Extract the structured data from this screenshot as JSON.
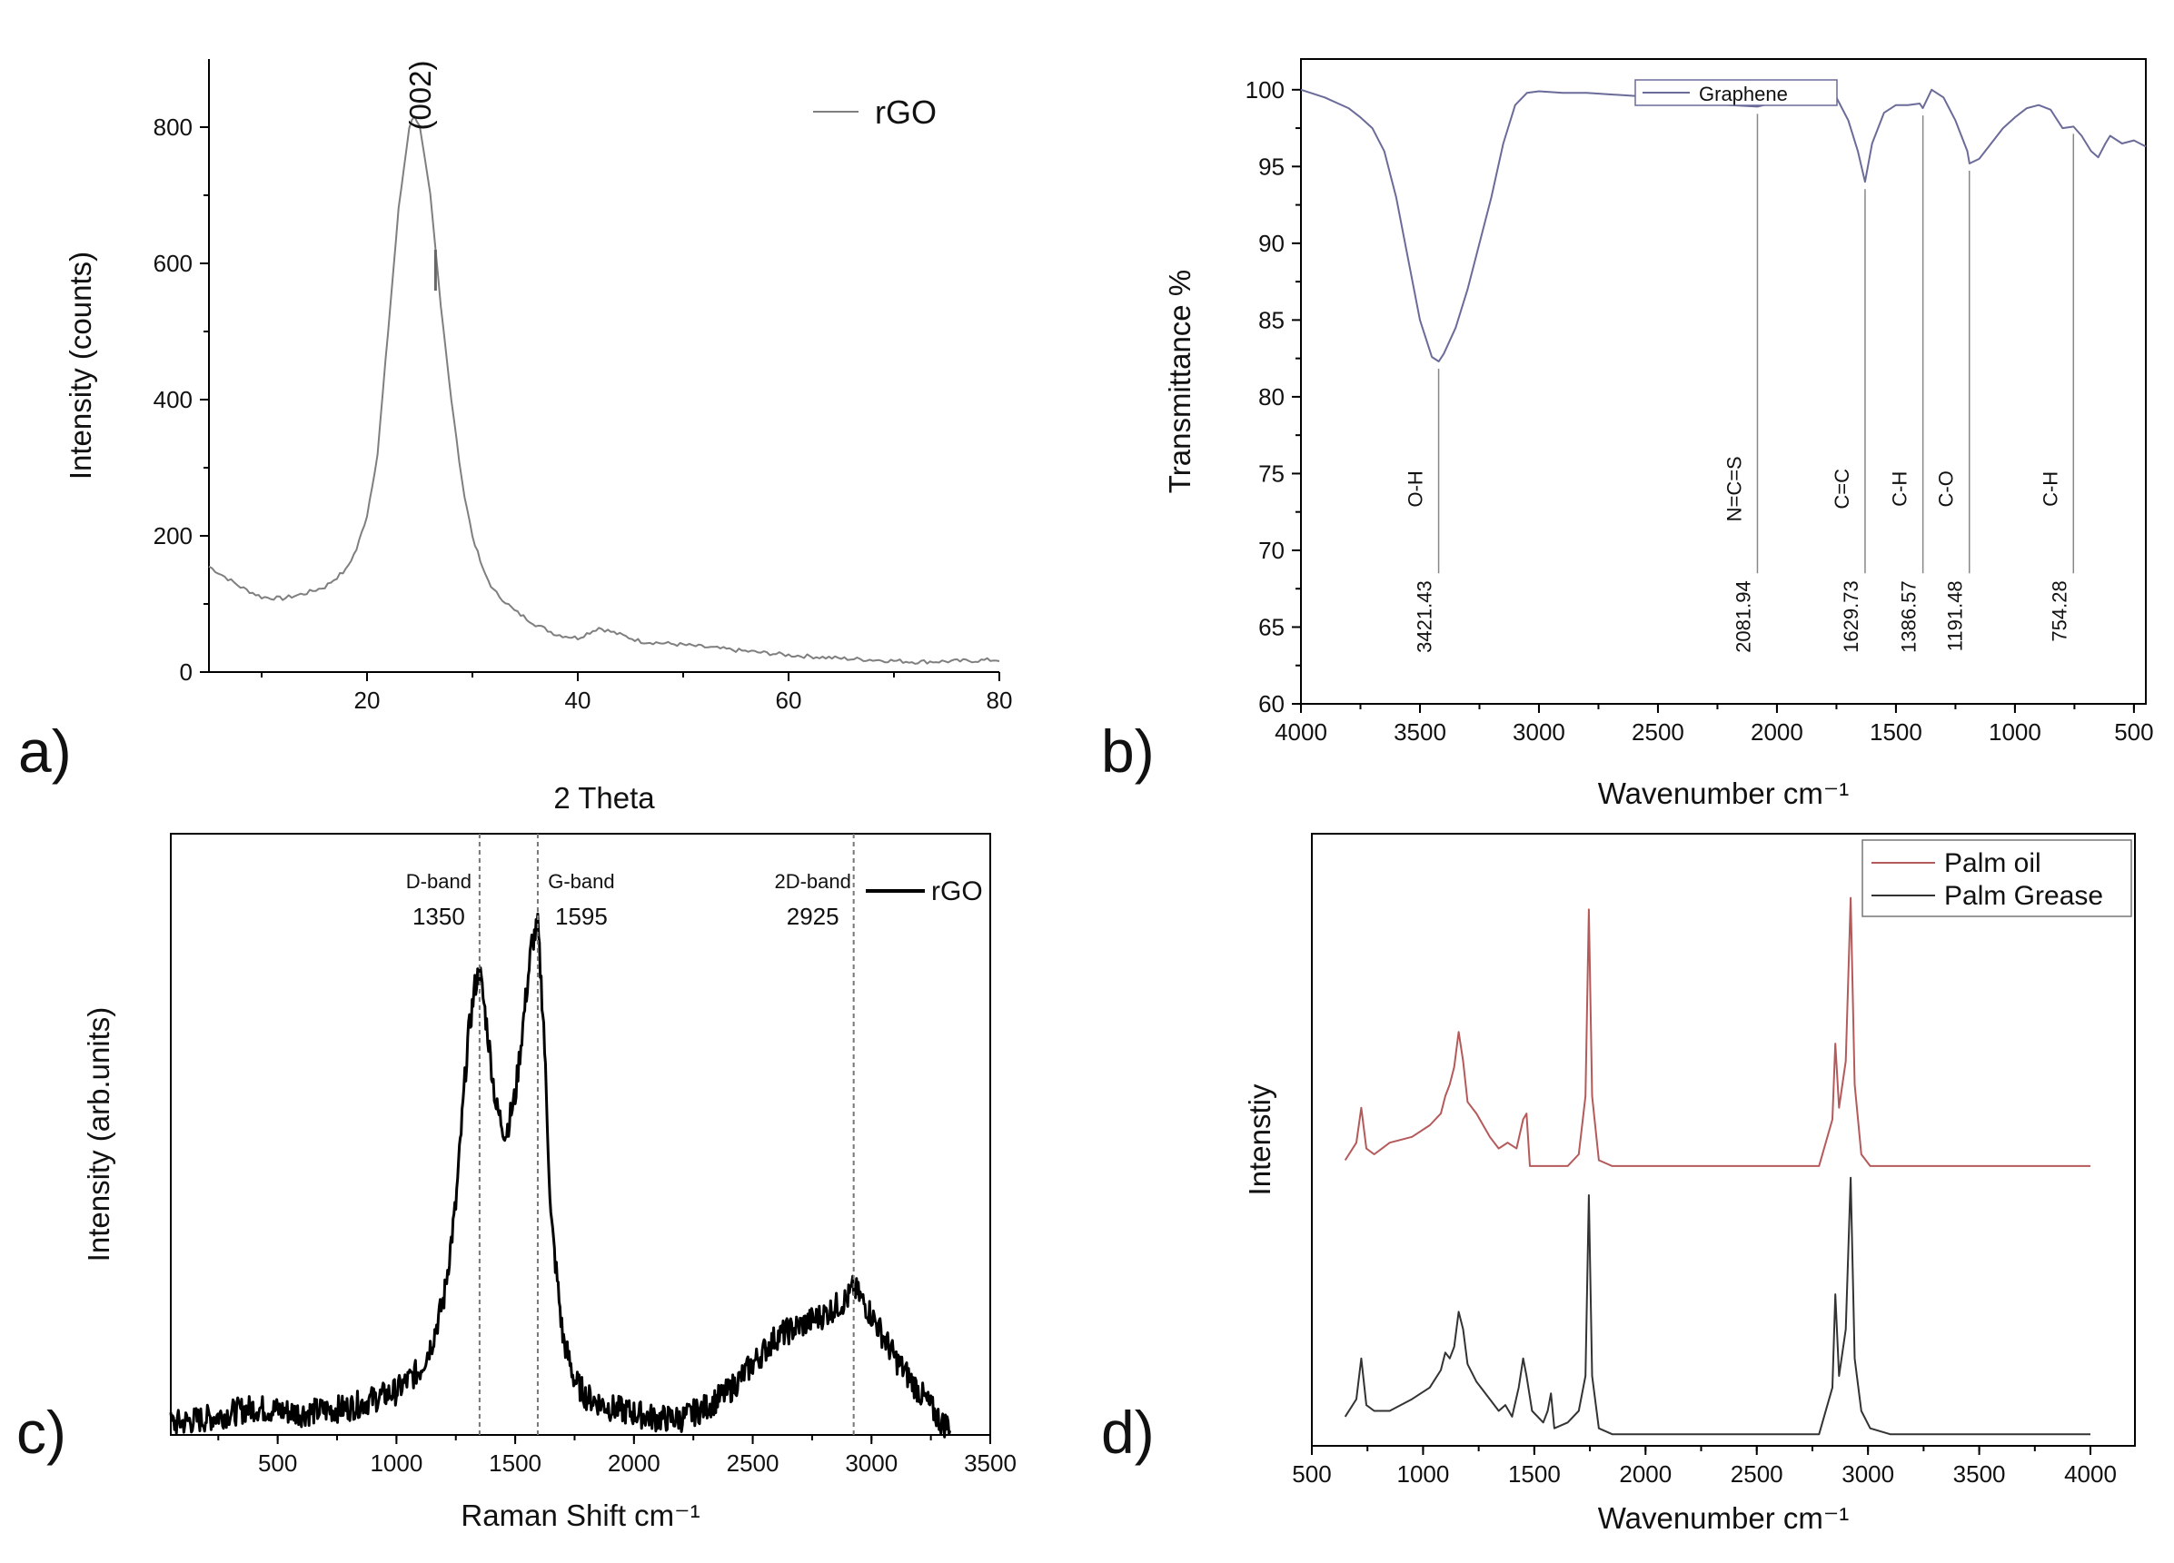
{
  "chart_data": [
    {
      "type": "line",
      "panel_label": "a)",
      "title": "",
      "xlabel": "2 Theta",
      "ylabel": "Intensity (counts)",
      "xlim": [
        5,
        80
      ],
      "ylim": [
        0,
        900
      ],
      "x_ticks": [
        "20",
        "40",
        "60",
        "80"
      ],
      "y_ticks": [
        "0",
        "200",
        "400",
        "600",
        "800"
      ],
      "legend": [
        "rGO"
      ],
      "annotations": [
        "(002)"
      ],
      "series": [
        {
          "name": "rGO",
          "color": "#7f7f7f",
          "x": [
            5,
            8,
            10,
            12,
            14,
            16,
            18,
            19,
            20,
            21,
            22,
            23,
            24,
            24.5,
            25,
            26,
            26.5,
            27,
            28,
            29,
            30,
            31,
            32,
            34,
            36,
            38,
            40,
            42,
            44,
            46,
            50,
            55,
            60,
            65,
            68,
            72,
            76,
            80
          ],
          "y": [
            155,
            125,
            110,
            108,
            115,
            125,
            150,
            180,
            230,
            320,
            500,
            680,
            800,
            818,
            800,
            700,
            620,
            540,
            400,
            280,
            200,
            150,
            120,
            90,
            70,
            55,
            50,
            65,
            55,
            45,
            40,
            32,
            25,
            20,
            18,
            15,
            16,
            18
          ]
        }
      ]
    },
    {
      "type": "line",
      "panel_label": "b)",
      "title": "",
      "xlabel": "Wavenumber cm⁻¹",
      "ylabel": "Transmittance %",
      "xlim": [
        4000,
        450
      ],
      "ylim": [
        60,
        102
      ],
      "x_ticks": [
        "4000",
        "3500",
        "3000",
        "2500",
        "2000",
        "1500",
        "1000",
        "500"
      ],
      "y_ticks": [
        "60",
        "65",
        "70",
        "75",
        "80",
        "85",
        "90",
        "95",
        "100"
      ],
      "legend": [
        "Graphene"
      ],
      "series": [
        {
          "name": "Graphene",
          "color": "#6b6b9a",
          "x": [
            4000,
            3900,
            3800,
            3750,
            3700,
            3650,
            3600,
            3550,
            3500,
            3450,
            3421,
            3400,
            3350,
            3300,
            3250,
            3200,
            3150,
            3100,
            3050,
            3000,
            2900,
            2800,
            2500,
            2200,
            2082,
            2000,
            1900,
            1800,
            1750,
            1700,
            1660,
            1630,
            1600,
            1550,
            1500,
            1450,
            1400,
            1387,
            1350,
            1300,
            1250,
            1200,
            1191,
            1150,
            1100,
            1050,
            1000,
            950,
            900,
            850,
            800,
            754,
            720,
            680,
            650,
            620,
            600,
            550,
            500,
            450
          ],
          "y": [
            100,
            99.5,
            98.8,
            98.2,
            97.5,
            96,
            93,
            89,
            85,
            82.6,
            82.3,
            82.8,
            84.5,
            87,
            90,
            93,
            96.5,
            99,
            99.8,
            99.9,
            99.8,
            99.8,
            99.5,
            99,
            98.9,
            99.2,
            99.5,
            99.8,
            99.5,
            98,
            96,
            94,
            96.5,
            98.5,
            99,
            99,
            99.1,
            98.8,
            100,
            99.5,
            98,
            96,
            95.2,
            95.5,
            96.5,
            97.5,
            98.2,
            98.8,
            99,
            98.7,
            97.5,
            97.6,
            97,
            96,
            95.6,
            96.5,
            97,
            96.5,
            96.7,
            96.3
          ]
        }
      ],
      "peak_labels": [
        {
          "position": 3421.43,
          "group": "O-H",
          "value": "3421.43"
        },
        {
          "position": 2081.94,
          "group": "N=C=S",
          "value": "2081.94"
        },
        {
          "position": 1629.73,
          "group": "C=C",
          "value": "1629.73"
        },
        {
          "position": 1386.57,
          "group": "C-H",
          "value": "1386.57"
        },
        {
          "position": 1191.48,
          "group": "C-O",
          "value": "1191.48"
        },
        {
          "position": 754.28,
          "group": "C-H",
          "value": "754.28"
        }
      ]
    },
    {
      "type": "line",
      "panel_label": "c)",
      "title": "",
      "xlabel": "Raman Shift  cm⁻¹",
      "ylabel": "Intensity (arb.units)",
      "xlim": [
        50,
        3500
      ],
      "ylim": [
        0,
        1.1
      ],
      "x_ticks": [
        "500",
        "1000",
        "1500",
        "2000",
        "2500",
        "3000",
        "3500"
      ],
      "legend": [
        "rGO"
      ],
      "band_markers": [
        {
          "position": 1350,
          "name": "D-band",
          "value": "1350"
        },
        {
          "position": 1595,
          "name": "G-band",
          "value": "1595"
        },
        {
          "position": 2925,
          "name": "2D-band",
          "value": "2925"
        }
      ],
      "series": [
        {
          "name": "rGO",
          "color": "#000000",
          "x": [
            50,
            200,
            400,
            600,
            800,
            1000,
            1100,
            1150,
            1200,
            1250,
            1280,
            1300,
            1330,
            1350,
            1380,
            1420,
            1460,
            1500,
            1540,
            1570,
            1595,
            1620,
            1650,
            1700,
            1750,
            1800,
            1900,
            2000,
            2100,
            2200,
            2300,
            2400,
            2500,
            2600,
            2700,
            2800,
            2900,
            2925,
            3000,
            3100,
            3200,
            3250,
            3300,
            3330
          ],
          "y": [
            0.02,
            0.03,
            0.05,
            0.04,
            0.05,
            0.08,
            0.12,
            0.17,
            0.25,
            0.42,
            0.6,
            0.72,
            0.82,
            0.85,
            0.75,
            0.6,
            0.55,
            0.62,
            0.78,
            0.9,
            0.93,
            0.75,
            0.4,
            0.18,
            0.1,
            0.07,
            0.05,
            0.04,
            0.03,
            0.03,
            0.05,
            0.08,
            0.13,
            0.18,
            0.2,
            0.22,
            0.25,
            0.27,
            0.22,
            0.14,
            0.08,
            0.05,
            0.02,
            0.02
          ]
        }
      ]
    },
    {
      "type": "line",
      "panel_label": "d)",
      "title": "",
      "xlabel": "Wavenumber  cm⁻¹",
      "ylabel": "Intenstiy",
      "xlim": [
        500,
        4200
      ],
      "ylim": [
        0,
        1.05
      ],
      "x_ticks": [
        "500",
        "1000",
        "1500",
        "2000",
        "2500",
        "3000",
        "3500",
        "4000"
      ],
      "legend": [
        "Palm oil",
        "Palm Grease"
      ],
      "series": [
        {
          "name": "Palm oil",
          "color": "#b55a5a",
          "x": [
            650,
            700,
            722,
            745,
            780,
            850,
            950,
            1030,
            1080,
            1100,
            1120,
            1140,
            1160,
            1180,
            1200,
            1240,
            1300,
            1340,
            1380,
            1420,
            1450,
            1465,
            1480,
            1550,
            1650,
            1700,
            1730,
            1745,
            1760,
            1790,
            1850,
            2000,
            2200,
            2400,
            2600,
            2780,
            2840,
            2853,
            2870,
            2900,
            2922,
            2940,
            2970,
            3010,
            3100,
            3300,
            3500,
            3800,
            4000
          ],
          "y": [
            0.49,
            0.52,
            0.58,
            0.51,
            0.5,
            0.52,
            0.53,
            0.55,
            0.57,
            0.6,
            0.62,
            0.65,
            0.71,
            0.66,
            0.59,
            0.57,
            0.53,
            0.51,
            0.52,
            0.51,
            0.56,
            0.57,
            0.48,
            0.48,
            0.48,
            0.5,
            0.6,
            0.92,
            0.6,
            0.49,
            0.48,
            0.48,
            0.48,
            0.48,
            0.48,
            0.48,
            0.56,
            0.69,
            0.58,
            0.66,
            0.94,
            0.62,
            0.5,
            0.48,
            0.48,
            0.48,
            0.48,
            0.48,
            0.48
          ]
        },
        {
          "name": "Palm Grease",
          "color": "#333333",
          "x": [
            650,
            700,
            722,
            745,
            780,
            850,
            950,
            1030,
            1080,
            1100,
            1120,
            1140,
            1160,
            1180,
            1200,
            1240,
            1300,
            1340,
            1370,
            1400,
            1430,
            1450,
            1465,
            1490,
            1540,
            1560,
            1575,
            1590,
            1650,
            1700,
            1730,
            1745,
            1760,
            1790,
            1850,
            2000,
            2200,
            2400,
            2600,
            2780,
            2840,
            2853,
            2870,
            2900,
            2922,
            2940,
            2970,
            3010,
            3100,
            3300,
            3500,
            3800,
            4000
          ],
          "y": [
            0.05,
            0.08,
            0.15,
            0.07,
            0.06,
            0.06,
            0.08,
            0.1,
            0.13,
            0.16,
            0.15,
            0.17,
            0.23,
            0.2,
            0.14,
            0.11,
            0.08,
            0.06,
            0.07,
            0.05,
            0.1,
            0.15,
            0.12,
            0.06,
            0.04,
            0.06,
            0.09,
            0.03,
            0.04,
            0.06,
            0.12,
            0.43,
            0.12,
            0.03,
            0.02,
            0.02,
            0.02,
            0.02,
            0.02,
            0.02,
            0.1,
            0.26,
            0.12,
            0.2,
            0.46,
            0.15,
            0.06,
            0.03,
            0.02,
            0.02,
            0.02,
            0.02,
            0.02
          ]
        }
      ]
    }
  ]
}
